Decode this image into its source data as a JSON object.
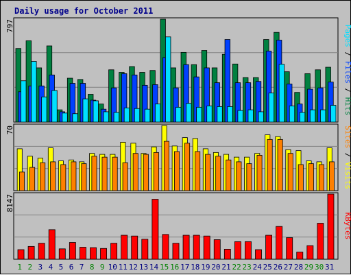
{
  "chart_data": {
    "title": "Daily usage for October 2011",
    "type": "bar",
    "categories": [
      "1",
      "2",
      "3",
      "4",
      "5",
      "6",
      "7",
      "8",
      "9",
      "10",
      "11",
      "12",
      "13",
      "14",
      "15",
      "16",
      "17",
      "18",
      "19",
      "20",
      "21",
      "22",
      "23",
      "24",
      "25",
      "26",
      "27",
      "28",
      "29",
      "30",
      "31"
    ],
    "weekend_days": [
      "1",
      "2",
      "8",
      "9",
      "15",
      "16",
      "22",
      "23",
      "29",
      "30"
    ],
    "colors": {
      "hits": "#008040",
      "files": "#0040ff",
      "pages": "#00e0ff",
      "visits": "#ffff00",
      "sites": "#ff8000",
      "kbytes": "#ff0000",
      "weekday_label": "#000080",
      "weekend_label": "#008000",
      "title": "#00008b",
      "background": "#c0c0c0"
    },
    "panels": [
      {
        "id": "usage",
        "ymax_label": "797",
        "ymax": 797,
        "gridlines": [
          266,
          531
        ],
        "series": [
          {
            "name": "Hits",
            "values": [
              570,
              630,
              420,
              590,
              95,
              340,
              330,
              215,
              140,
              405,
              385,
              430,
              385,
              400,
              797,
              420,
              540,
              445,
              555,
              420,
              525,
              450,
              345,
              345,
              640,
              695,
              390,
              230,
              375,
              405,
              425
            ]
          },
          {
            "name": "Files",
            "values": [
              235,
              280,
              280,
              365,
              80,
              300,
              300,
              170,
              100,
              265,
              375,
              365,
              285,
              290,
              500,
              265,
              445,
              350,
              420,
              305,
              640,
              305,
              305,
              315,
              550,
              635,
              295,
              140,
              255,
              265,
              310
            ]
          },
          {
            "name": "Pages",
            "values": [
              320,
              470,
              195,
              245,
              70,
              65,
              180,
              165,
              80,
              75,
              110,
              105,
              100,
              140,
              660,
              115,
              145,
              115,
              125,
              120,
              120,
              90,
              95,
              80,
              225,
              448,
              125,
              75,
              95,
              95,
              130
            ]
          }
        ],
        "side_labels": [
          "Pages",
          "Files",
          "Hits"
        ]
      },
      {
        "id": "visitors",
        "ymax_label": "70",
        "ymax": 70,
        "gridlines": [
          23.3,
          46.6
        ],
        "series": [
          {
            "name": "Visits",
            "values": [
              45,
              37,
              35,
              46,
              32,
              33,
              31,
              40,
              39,
              39,
              52,
              51,
              40,
              47,
              70,
              48,
              57,
              56,
              45,
              41,
              39,
              36,
              36,
              40,
              60,
              58,
              44,
              43,
              32,
              31,
              46
            ]
          },
          {
            "name": "Sites",
            "values": [
              20,
              25,
              30,
              31,
              28,
              31,
              29,
              37,
              36,
              36,
              30,
              40,
              39,
              41,
              53,
              42,
              51,
              42,
              39,
              37,
              33,
              31,
              29,
              38,
              55,
              55,
              40,
              28,
              29,
              28,
              31
            ]
          }
        ],
        "side_labels": [
          "Sites",
          "Visits"
        ]
      },
      {
        "id": "kbytes",
        "ymax_label": "8147",
        "ymax": 8147,
        "gridlines": [
          2716,
          5432
        ],
        "series": [
          {
            "name": "KBytes",
            "values": [
              1200,
              1600,
              2000,
              3700,
              1300,
              2100,
              1500,
              1450,
              1350,
              2000,
              3000,
              2900,
              2500,
              7500,
              3100,
              2000,
              3000,
              3000,
              2900,
              2450,
              1250,
              2200,
              2200,
              1200,
              3000,
              4100,
              2700,
              900,
              1700,
              4500,
              8147
            ]
          }
        ],
        "side_labels": [
          "KBytes"
        ]
      }
    ]
  }
}
